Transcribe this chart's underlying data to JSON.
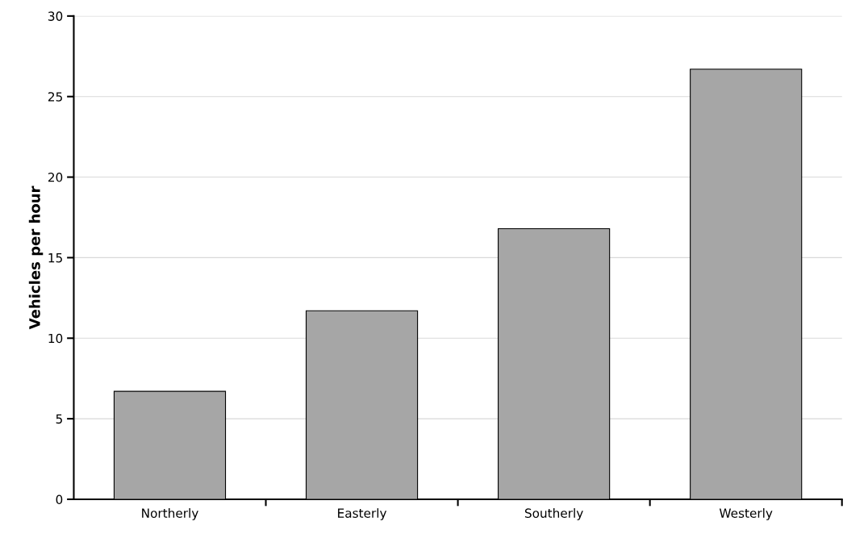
{
  "chart_data": {
    "type": "bar",
    "ylabel": "Vehicles per hour",
    "categories": [
      "Northerly",
      "Easterly",
      "Southerly",
      "Westerly"
    ],
    "values": [
      6.7,
      11.7,
      16.8,
      26.7
    ],
    "color": "#a6a6a6",
    "ylim": [
      0,
      30
    ],
    "yticks": [
      0,
      5,
      10,
      15,
      20,
      25,
      30
    ],
    "grid": "y"
  }
}
